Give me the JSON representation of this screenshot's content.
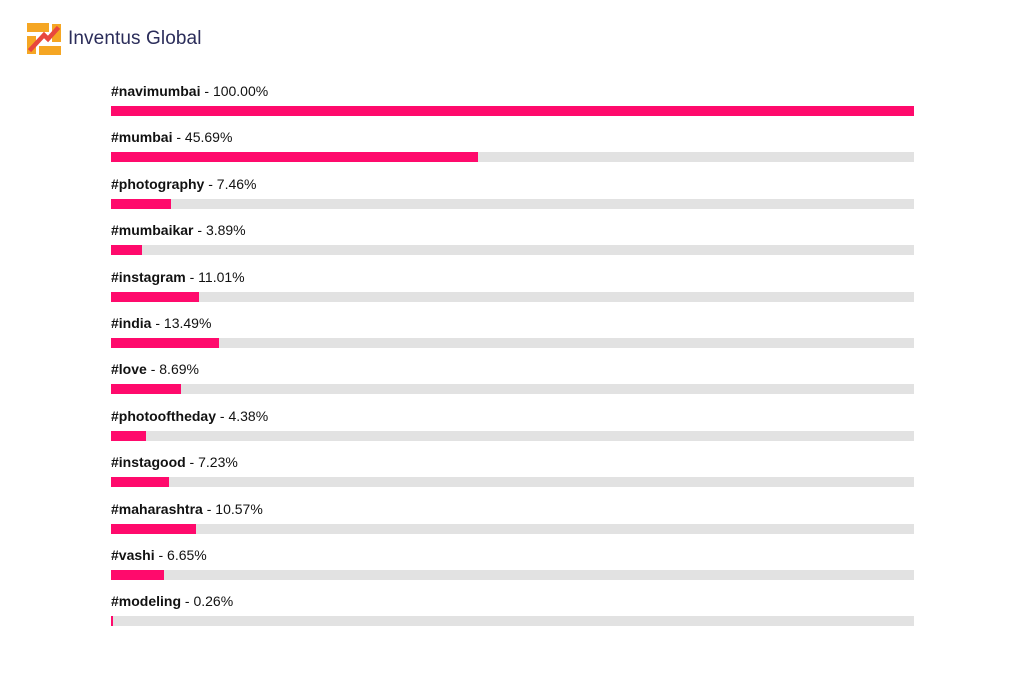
{
  "brand": {
    "name": "Inventus Global",
    "logo_icon": "inventus-logo-icon",
    "colors": {
      "orange": "#f5a623",
      "red": "#e8473d",
      "text": "#2b2d5a"
    }
  },
  "chart_data": {
    "type": "bar",
    "orientation": "horizontal",
    "categories": [
      "#navimumbai",
      "#mumbai",
      "#photography",
      "#mumbaikar",
      "#instagram",
      "#india",
      "#love",
      "#photooftheday",
      "#instagood",
      "#maharashtra",
      "#vashi",
      "#modeling"
    ],
    "values": [
      100.0,
      45.69,
      7.46,
      3.89,
      11.01,
      13.49,
      8.69,
      4.38,
      7.23,
      10.57,
      6.65,
      0.26
    ],
    "value_labels": [
      "100.00%",
      "45.69%",
      "7.46%",
      "3.89%",
      "11.01%",
      "13.49%",
      "8.69%",
      "4.38%",
      "7.23%",
      "10.57%",
      "6.65%",
      "0.26%"
    ],
    "separator": " - ",
    "xlim": [
      0,
      100
    ],
    "unit": "%",
    "grid": false,
    "bar_color": "#ff0a6c",
    "track_color": "#e2e2e2"
  }
}
